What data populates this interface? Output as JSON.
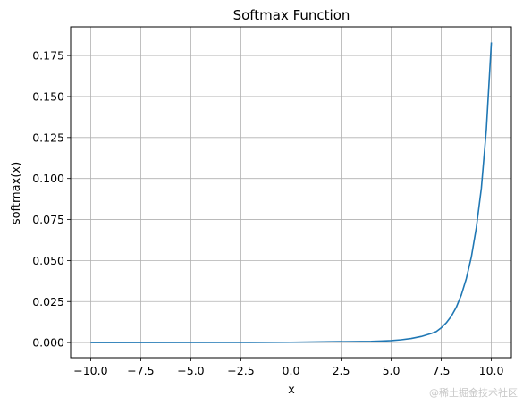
{
  "chart_data": {
    "type": "line",
    "title": "Softmax Function",
    "xlabel": "x",
    "ylabel": "softmax(x)",
    "xlim": [
      -11,
      11
    ],
    "ylim": [
      -0.0092,
      0.1925
    ],
    "grid": true,
    "x_ticks": [
      -10,
      -7.5,
      -5,
      -2.5,
      0,
      2.5,
      5,
      7.5,
      10
    ],
    "x_tick_labels": [
      "−10.0",
      "−7.5",
      "−5.0",
      "−2.5",
      "0.0",
      "2.5",
      "5.0",
      "7.5",
      "10.0"
    ],
    "y_ticks": [
      0,
      0.025,
      0.05,
      0.075,
      0.1,
      0.125,
      0.15,
      0.175
    ],
    "y_tick_labels": [
      "0.000",
      "0.025",
      "0.050",
      "0.075",
      "0.100",
      "0.125",
      "0.150",
      "0.175"
    ],
    "series": [
      {
        "color": "#1f77b4",
        "x": [
          -10,
          -2,
          0,
          2,
          3,
          4,
          4.5,
          5,
          5.5,
          6,
          6.5,
          7,
          7.25,
          7.5,
          7.75,
          8,
          8.25,
          8.5,
          8.75,
          9,
          9.25,
          9.5,
          9.75,
          10
        ],
        "y": [
          0.0,
          0.0001,
          0.0002,
          0.0005,
          0.0006,
          0.0007,
          0.0009,
          0.0012,
          0.0017,
          0.0025,
          0.0037,
          0.0055,
          0.0067,
          0.009,
          0.012,
          0.016,
          0.0215,
          0.029,
          0.039,
          0.052,
          0.07,
          0.094,
          0.13,
          0.183
        ]
      }
    ]
  },
  "watermark": "@稀土掘金技术社区"
}
